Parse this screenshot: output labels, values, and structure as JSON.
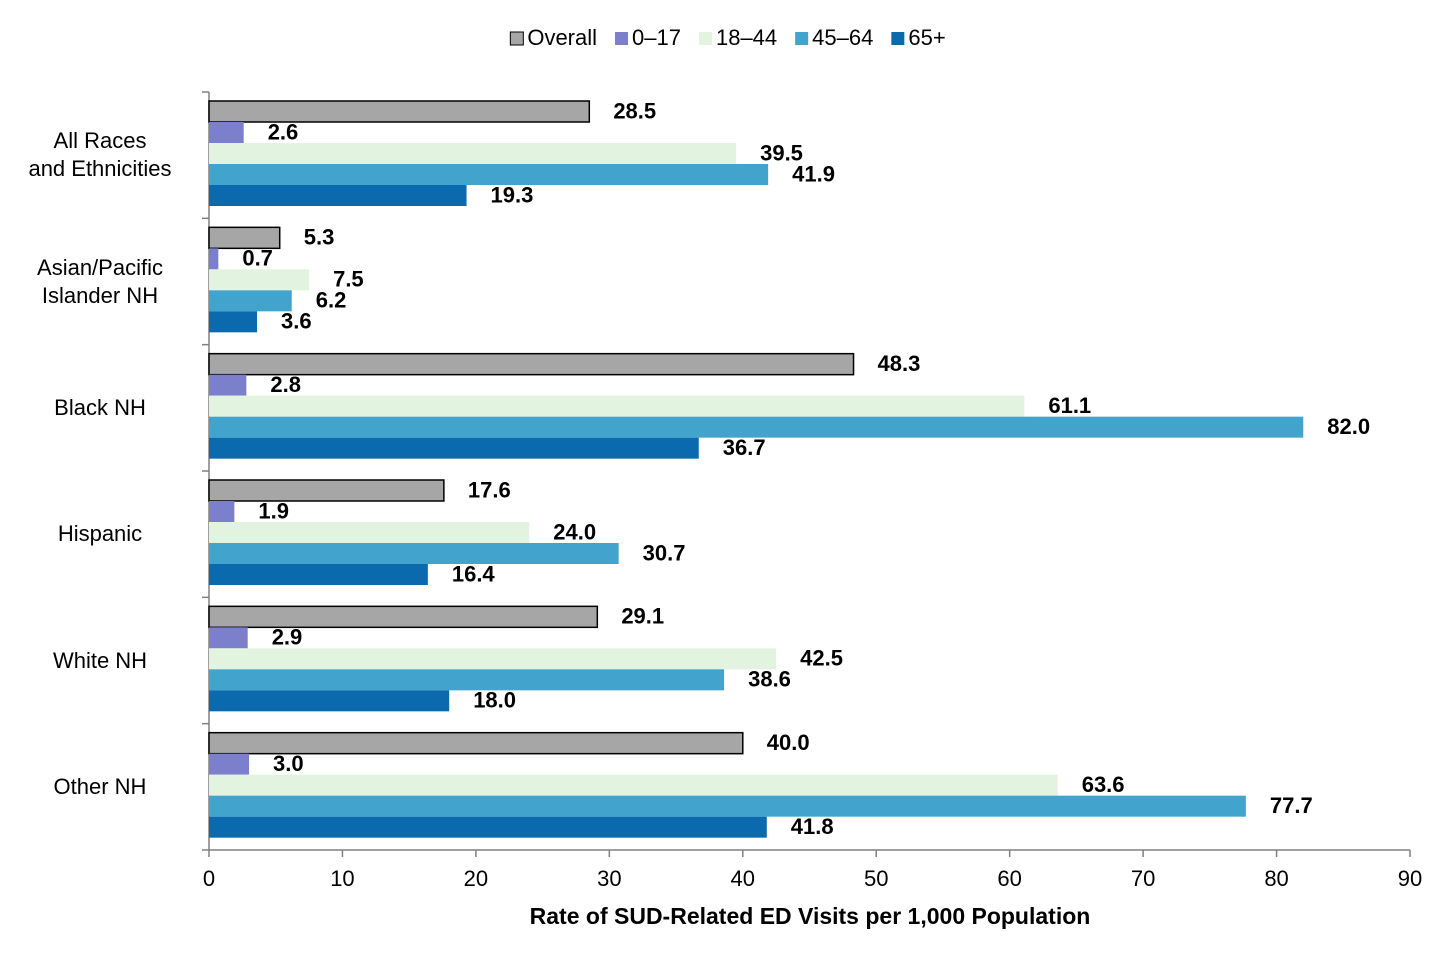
{
  "chart_data": {
    "type": "grouped-hbar",
    "xlabel": "Rate of SUD-Related ED Visits per 1,000 Population",
    "categories": [
      "All Races\nand Ethnicities",
      "Asian/Pacific\nIslander NH",
      "Black NH",
      "Hispanic",
      "White NH",
      "Other NH"
    ],
    "series": [
      {
        "name": "Overall",
        "color": "#a6a6a6",
        "values": [
          28.5,
          5.3,
          48.3,
          17.6,
          29.1,
          40.0
        ],
        "value_labels": [
          "28.5",
          "5.3",
          "48.3",
          "17.6",
          "29.1",
          "40.0"
        ]
      },
      {
        "name": "0–17",
        "color": "#7b7fcc",
        "values": [
          2.6,
          0.7,
          2.8,
          1.9,
          2.9,
          3.0
        ],
        "value_labels": [
          "2.6",
          "0.7",
          "2.8",
          "1.9",
          "2.9",
          "3.0"
        ]
      },
      {
        "name": "18–44",
        "color": "#e2f3df",
        "values": [
          39.5,
          7.5,
          61.1,
          24.0,
          42.5,
          63.6
        ],
        "value_labels": [
          "39.5",
          "7.5",
          "61.1",
          "24.0",
          "42.5",
          "63.6"
        ]
      },
      {
        "name": "45–64",
        "color": "#42a3cc",
        "values": [
          41.9,
          6.2,
          82.0,
          30.7,
          38.6,
          77.7
        ],
        "value_labels": [
          "41.9",
          "6.2",
          "82.0",
          "30.7",
          "38.6",
          "77.7"
        ]
      },
      {
        "name": "65+",
        "color": "#0b6aad",
        "values": [
          19.3,
          3.6,
          36.7,
          16.4,
          18.0,
          41.8
        ],
        "value_labels": [
          "19.3",
          "3.6",
          "36.7",
          "16.4",
          "18.0",
          "41.8"
        ]
      }
    ],
    "xlim": [
      0,
      90
    ],
    "xticks": [
      0,
      10,
      20,
      30,
      40,
      50,
      60,
      70,
      80,
      90
    ]
  }
}
